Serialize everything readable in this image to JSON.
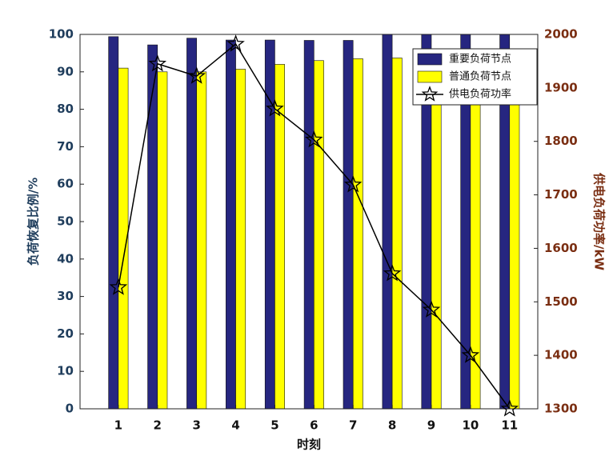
{
  "chart_data": {
    "type": "bar_line",
    "xlabel": "时刻",
    "ylabel": "负荷恢复比例/%",
    "y2label": "供电负荷功率/kW",
    "categories": [
      "1",
      "2",
      "3",
      "4",
      "5",
      "6",
      "7",
      "8",
      "9",
      "10",
      "11"
    ],
    "series": [
      {
        "name": "重要负荷节点",
        "type": "bar",
        "color": "#262680",
        "values": [
          99.4,
          97.2,
          99,
          98.5,
          98.5,
          98.4,
          98.4,
          100,
          100,
          100,
          100
        ]
      },
      {
        "name": "普通负荷节点",
        "type": "bar",
        "color": "#ffff00",
        "values": [
          91,
          90,
          90,
          90.7,
          92,
          93,
          93.5,
          93.7,
          94,
          94,
          94
        ]
      },
      {
        "name": "供电负荷功率",
        "type": "line",
        "axis": "y2",
        "color": "#000000",
        "values": [
          1527,
          1945,
          1922,
          1982,
          1861,
          1803,
          1719,
          1553,
          1485,
          1400,
          1300
        ]
      }
    ],
    "ylim": [
      0,
      100
    ],
    "yticks": [
      0,
      10,
      20,
      30,
      40,
      50,
      60,
      70,
      80,
      90,
      100
    ],
    "y2lim": [
      1300,
      2000
    ],
    "y2ticks": [
      1300,
      1400,
      1500,
      1600,
      1700,
      1800,
      1900,
      2000
    ],
    "grid": false,
    "legend": "upper right"
  }
}
